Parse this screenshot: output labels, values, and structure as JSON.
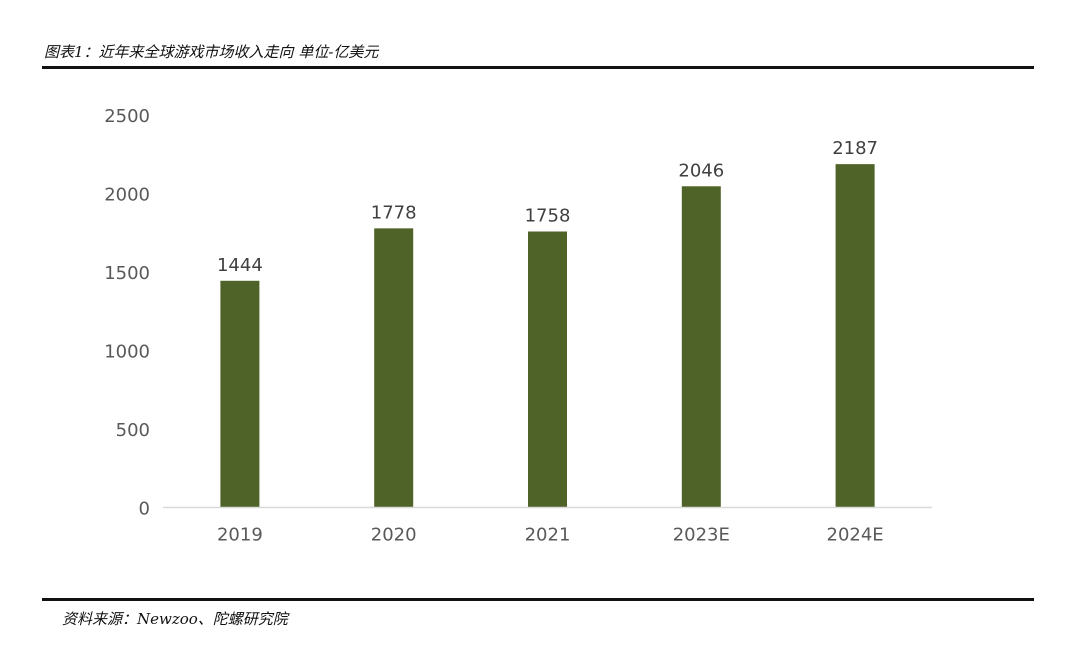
{
  "caption": "图表1：近年来全球游戏市场收入走向 单位-亿美元",
  "source": "资料来源：Newzoo、陀螺研究院",
  "colors": {
    "bar": "#4f6228",
    "axis": "#d9d9d9",
    "text": "#595959",
    "rule": "#111111"
  },
  "chart_data": {
    "type": "bar",
    "title": "",
    "xlabel": "",
    "ylabel": "",
    "categories": [
      "2019",
      "2020",
      "2021",
      "2023E",
      "2024E"
    ],
    "values": [
      1444,
      1778,
      1758,
      2046,
      2187
    ],
    "data_labels": [
      "1444",
      "1778",
      "1758",
      "2046",
      "2187"
    ],
    "ylim": [
      0,
      2500
    ],
    "yticks": [
      0,
      500,
      1000,
      1500,
      2000,
      2500
    ],
    "grid": false,
    "legend": "none"
  }
}
